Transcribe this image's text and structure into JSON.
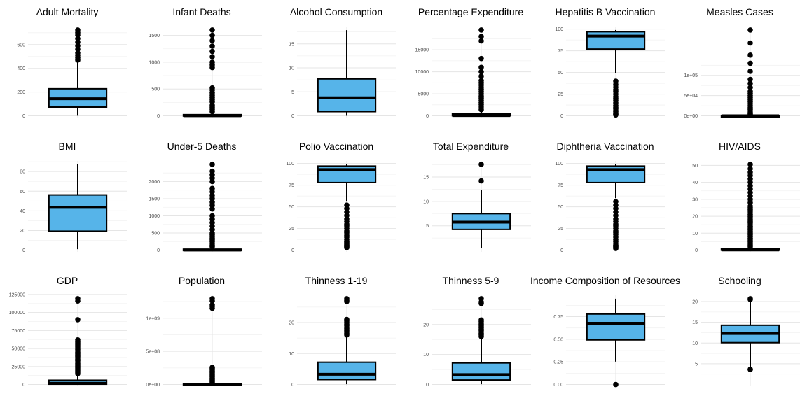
{
  "chart_data": [
    {
      "type": "box",
      "title": "Adult Mortality",
      "ylim": [
        0,
        723
      ],
      "yticks": [
        0,
        200,
        400,
        600
      ],
      "ytick_labels": [
        "0",
        "200",
        "400",
        "600"
      ],
      "whisker_low": 1,
      "q1": 74,
      "median": 144,
      "q3": 228,
      "whisker_high": 459,
      "outliers": [
        470,
        490,
        510,
        530,
        560,
        590,
        620,
        650,
        680,
        700,
        723
      ],
      "box_color": "#56B4E9"
    },
    {
      "type": "box",
      "title": "Infant Deaths",
      "ylim": [
        0,
        1600
      ],
      "yticks": [
        0,
        500,
        1000,
        1500
      ],
      "ytick_labels": [
        "0",
        "500",
        "1000",
        "1500"
      ],
      "whisker_low": 0,
      "q1": 0,
      "median": 3,
      "q3": 22,
      "whisker_high": 55,
      "outliers": [
        80,
        120,
        160,
        200,
        260,
        300,
        340,
        380,
        430,
        480,
        520,
        900,
        950,
        1000,
        1100,
        1200,
        1300,
        1400,
        1500,
        1600
      ],
      "box_color": "#56B4E9"
    },
    {
      "type": "box",
      "title": "Alcohol Consumption",
      "ylim": [
        0,
        17.9
      ],
      "yticks": [
        0,
        5,
        10,
        15
      ],
      "ytick_labels": [
        "0",
        "5",
        "10",
        "15"
      ],
      "whisker_low": 0.01,
      "q1": 0.88,
      "median": 3.76,
      "q3": 7.7,
      "whisker_high": 17.87,
      "outliers": [],
      "box_color": "#56B4E9"
    },
    {
      "type": "box",
      "title": "Percentage Expenditure",
      "ylim": [
        0,
        19480
      ],
      "yticks": [
        0,
        5000,
        10000,
        15000
      ],
      "ytick_labels": [
        "0",
        "5000",
        "10000",
        "15000"
      ],
      "whisker_low": 0,
      "q1": 4.7,
      "median": 64.9,
      "q3": 441.5,
      "whisker_high": 1095,
      "outliers": [
        1400,
        1800,
        2200,
        2600,
        3000,
        3500,
        4000,
        4500,
        5000,
        5500,
        6000,
        6500,
        7000,
        7500,
        8000,
        9000,
        10000,
        11000,
        13000,
        17000,
        18000,
        19480
      ],
      "box_color": "#56B4E9"
    },
    {
      "type": "box",
      "title": "Hepatitis B Vaccination",
      "ylim": [
        0,
        99
      ],
      "yticks": [
        0,
        25,
        50,
        75,
        100
      ],
      "ytick_labels": [
        "0",
        "25",
        "50",
        "75",
        "100"
      ],
      "whisker_low": 49,
      "q1": 77,
      "median": 92,
      "q3": 97,
      "whisker_high": 99,
      "outliers": [
        1,
        2,
        3,
        5,
        6,
        8,
        10,
        12,
        15,
        18,
        20,
        22,
        25,
        28,
        30,
        33,
        36,
        40
      ],
      "box_color": "#56B4E9"
    },
    {
      "type": "box",
      "title": "Measles Cases",
      "ylim": [
        0,
        212183
      ],
      "yticks": [
        0,
        50000,
        100000
      ],
      "ytick_labels": [
        "0e+00",
        "5e+04",
        "1e+05"
      ],
      "whisker_low": 0,
      "q1": 0,
      "median": 17,
      "q3": 360,
      "whisker_high": 900,
      "outliers": [
        1500,
        3000,
        5000,
        8000,
        12000,
        16000,
        20000,
        25000,
        30000,
        35000,
        40000,
        45000,
        50000,
        55000,
        60000,
        70000,
        80000,
        90000,
        110000,
        130000,
        150000,
        180000,
        212183
      ],
      "box_color": "#56B4E9"
    },
    {
      "type": "box",
      "title": "BMI",
      "ylim": [
        0,
        87.3
      ],
      "yticks": [
        0,
        20,
        40,
        60,
        80
      ],
      "ytick_labels": [
        "0",
        "20",
        "40",
        "60",
        "80"
      ],
      "whisker_low": 1,
      "q1": 19.3,
      "median": 43.5,
      "q3": 56.2,
      "whisker_high": 87.3,
      "outliers": [],
      "box_color": "#56B4E9"
    },
    {
      "type": "box",
      "title": "Under-5 Deaths",
      "ylim": [
        0,
        2500
      ],
      "yticks": [
        0,
        500,
        1000,
        1500,
        2000
      ],
      "ytick_labels": [
        "0",
        "500",
        "1000",
        "1500",
        "2000"
      ],
      "whisker_low": 0,
      "q1": 0,
      "median": 4,
      "q3": 28,
      "whisker_high": 70,
      "outliers": [
        100,
        150,
        200,
        250,
        300,
        350,
        400,
        450,
        500,
        600,
        700,
        800,
        900,
        1000,
        1200,
        1300,
        1400,
        1500,
        1600,
        1700,
        1800,
        2000,
        2100,
        2200,
        2300,
        2500
      ],
      "box_color": "#56B4E9"
    },
    {
      "type": "box",
      "title": "Polio Vaccination",
      "ylim": [
        0,
        99
      ],
      "yticks": [
        0,
        25,
        50,
        75,
        100
      ],
      "ytick_labels": [
        "0",
        "25",
        "50",
        "75",
        "100"
      ],
      "whisker_low": 56,
      "q1": 78,
      "median": 93,
      "q3": 97,
      "whisker_high": 99,
      "outliers": [
        3,
        4,
        5,
        6,
        7,
        8,
        9,
        10,
        12,
        15,
        17,
        20,
        22,
        25,
        28,
        30,
        33,
        36,
        40,
        44,
        48,
        52
      ],
      "box_color": "#56B4E9"
    },
    {
      "type": "box",
      "title": "Total Expenditure",
      "ylim": [
        0,
        17.6
      ],
      "yticks": [
        5,
        10,
        15
      ],
      "ytick_labels": [
        "5",
        "10",
        "15"
      ],
      "whisker_low": 0.37,
      "q1": 4.26,
      "median": 5.75,
      "q3": 7.49,
      "whisker_high": 12.3,
      "outliers": [
        14.2,
        17.6
      ],
      "box_color": "#56B4E9"
    },
    {
      "type": "box",
      "title": "Diphtheria Vaccination",
      "ylim": [
        0,
        99
      ],
      "yticks": [
        0,
        25,
        50,
        75,
        100
      ],
      "ytick_labels": [
        "0",
        "25",
        "50",
        "75",
        "100"
      ],
      "whisker_low": 60,
      "q1": 78,
      "median": 93,
      "q3": 97,
      "whisker_high": 99,
      "outliers": [
        2,
        3,
        4,
        5,
        6,
        8,
        10,
        12,
        15,
        18,
        20,
        22,
        25,
        28,
        30,
        33,
        36,
        40,
        44,
        48,
        52,
        56
      ],
      "box_color": "#56B4E9"
    },
    {
      "type": "box",
      "title": "HIV/AIDS",
      "ylim": [
        0,
        50.6
      ],
      "yticks": [
        0,
        10,
        20,
        30,
        40,
        50
      ],
      "ytick_labels": [
        "0",
        "10",
        "20",
        "30",
        "40",
        "50"
      ],
      "whisker_low": 0.1,
      "q1": 0.1,
      "median": 0.1,
      "q3": 0.8,
      "whisker_high": 1.8,
      "outliers": [
        2,
        3,
        4,
        5,
        6,
        7,
        8,
        9,
        10,
        11,
        12,
        13,
        14,
        15,
        16,
        17,
        18,
        19,
        20,
        21,
        22,
        23,
        24,
        25,
        26,
        28,
        30,
        32,
        34,
        36,
        38,
        40,
        42,
        44,
        46,
        48,
        50.6
      ],
      "box_color": "#56B4E9"
    },
    {
      "type": "box",
      "title": "GDP",
      "ylim": [
        0,
        119173
      ],
      "yticks": [
        0,
        25000,
        50000,
        75000,
        100000,
        125000
      ],
      "ytick_labels": [
        "0",
        "25000",
        "50000",
        "75000",
        "100000",
        "125000"
      ],
      "whisker_low": 1.7,
      "q1": 463.9,
      "median": 1766.9,
      "q3": 5910.8,
      "whisker_high": 14000,
      "outliers": [
        15000,
        17000,
        19000,
        21000,
        23000,
        25000,
        27000,
        29000,
        31000,
        33000,
        35000,
        37000,
        39000,
        41000,
        43000,
        45000,
        47000,
        49000,
        51000,
        53000,
        55000,
        57000,
        59000,
        62000,
        90000,
        116000,
        119173
      ],
      "box_color": "#56B4E9"
    },
    {
      "type": "box",
      "title": "Population",
      "ylim": [
        0,
        1293859294
      ],
      "yticks": [
        0,
        500000000,
        1000000000
      ],
      "ytick_labels": [
        "0e+00",
        "5e+08",
        "1e+09"
      ],
      "whisker_low": 34,
      "q1": 195793,
      "median": 1386542,
      "q3": 7420359,
      "whisker_high": 18200000,
      "outliers": [
        25000000,
        40000000,
        60000000,
        80000000,
        100000000,
        120000000,
        140000000,
        160000000,
        180000000,
        200000000,
        220000000,
        240000000,
        258000000,
        1150000000,
        1180000000,
        1200000000,
        1260000000,
        1293859294
      ],
      "box_color": "#56B4E9"
    },
    {
      "type": "box",
      "title": "Thinness 1-19",
      "ylim": [
        0,
        27.7
      ],
      "yticks": [
        0,
        10,
        20
      ],
      "ytick_labels": [
        "0",
        "10",
        "20"
      ],
      "whisker_low": 0.1,
      "q1": 1.6,
      "median": 3.3,
      "q3": 7.2,
      "whisker_high": 15.6,
      "outliers": [
        16,
        16.5,
        17,
        17.5,
        18,
        18.5,
        19,
        19.5,
        20,
        20.5,
        21,
        26.8,
        27.2,
        27.7
      ],
      "box_color": "#56B4E9"
    },
    {
      "type": "box",
      "title": "Thinness 5-9",
      "ylim": [
        0,
        28.6
      ],
      "yticks": [
        0,
        10,
        20
      ],
      "ytick_labels": [
        "0",
        "10",
        "20"
      ],
      "whisker_low": 0.1,
      "q1": 1.5,
      "median": 3.3,
      "q3": 7.2,
      "whisker_high": 15.7,
      "outliers": [
        16,
        16.5,
        17,
        17.5,
        18,
        18.5,
        19,
        19.5,
        20,
        20.5,
        21,
        21.5,
        27,
        27.5,
        28.6
      ],
      "box_color": "#56B4E9"
    },
    {
      "type": "box",
      "title": "Income Composition of Resources",
      "ylim": [
        0,
        0.948
      ],
      "yticks": [
        0,
        0.25,
        0.5,
        0.75
      ],
      "ytick_labels": [
        "0.00",
        "0.25",
        "0.50",
        "0.75"
      ],
      "whisker_low": 0.253,
      "q1": 0.493,
      "median": 0.677,
      "q3": 0.779,
      "whisker_high": 0.948,
      "outliers": [
        0
      ],
      "box_color": "#56B4E9"
    },
    {
      "type": "box",
      "title": "Schooling",
      "ylim": [
        0,
        20.7
      ],
      "yticks": [
        5,
        10,
        15,
        20
      ],
      "ytick_labels": [
        "5",
        "10",
        "15",
        "20"
      ],
      "whisker_low": 4.2,
      "q1": 10.1,
      "median": 12.3,
      "q3": 14.3,
      "whisker_high": 20.2,
      "outliers": [
        20.5,
        20.7,
        3.6,
        3.7
      ],
      "box_color": "#56B4E9"
    }
  ]
}
